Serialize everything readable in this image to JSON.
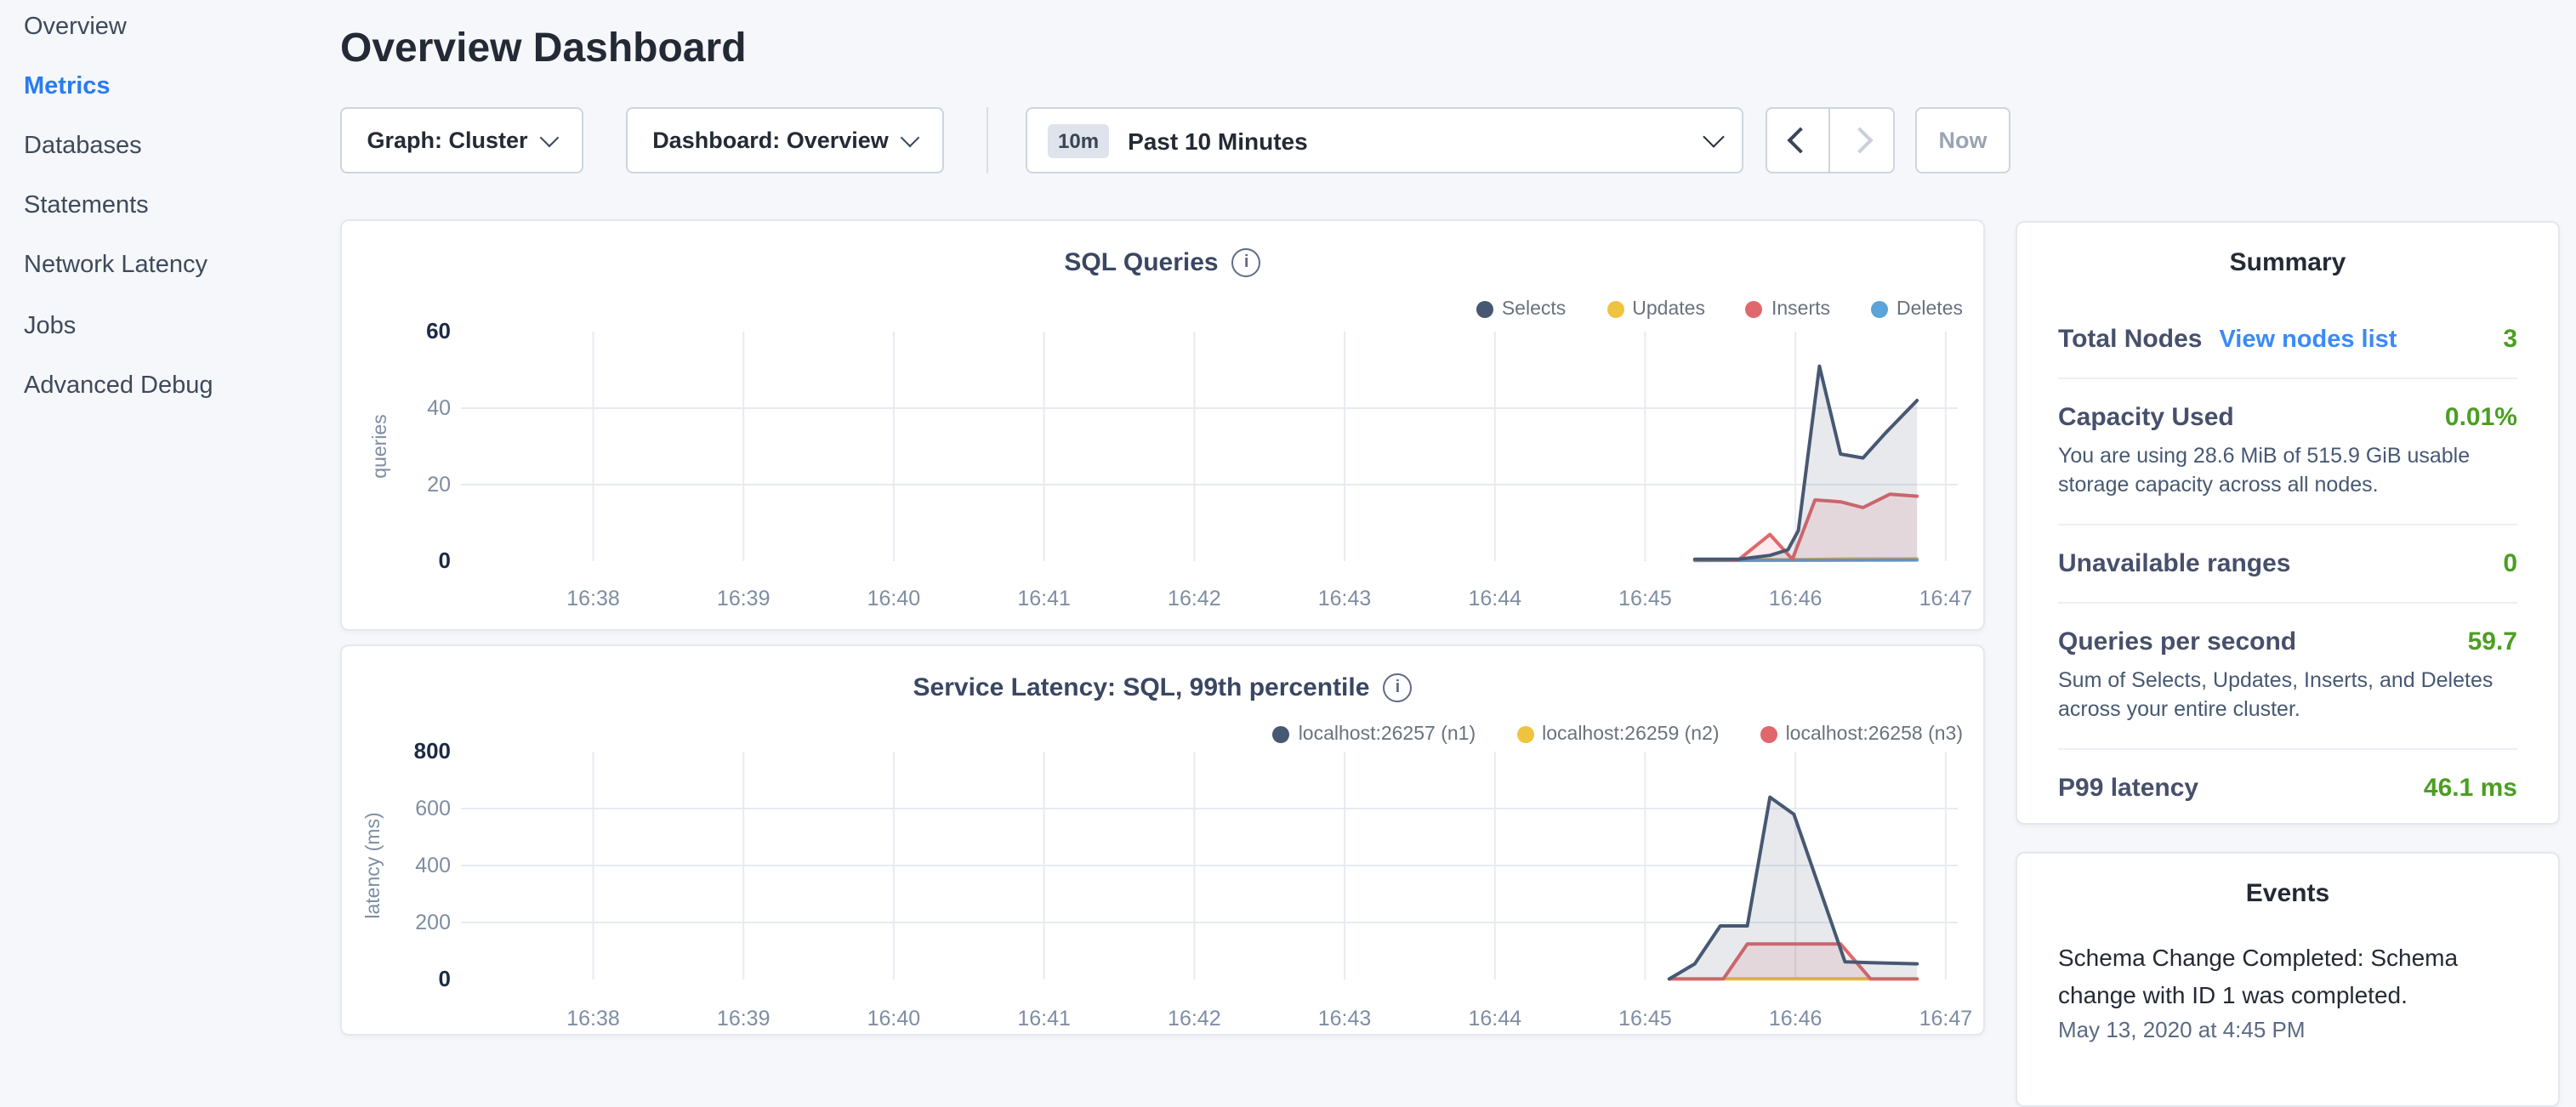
{
  "sidebar": {
    "items": [
      {
        "label": "Overview",
        "active": false
      },
      {
        "label": "Metrics",
        "active": true
      },
      {
        "label": "Databases",
        "active": false
      },
      {
        "label": "Statements",
        "active": false
      },
      {
        "label": "Network Latency",
        "active": false
      },
      {
        "label": "Jobs",
        "active": false
      },
      {
        "label": "Advanced Debug",
        "active": false
      }
    ]
  },
  "header": {
    "title": "Overview Dashboard"
  },
  "controls": {
    "graph_dropdown": "Graph: Cluster",
    "dashboard_dropdown": "Dashboard: Overview",
    "time_window_badge": "10m",
    "time_window_label": "Past 10 Minutes",
    "now_button": "Now"
  },
  "colors": {
    "nav_active_blue": "#2a7bf0",
    "link_blue": "#3b8af8",
    "success_green": "#4c9e22"
  },
  "chart_style": {
    "grid": "#e7ebf1",
    "tick": "#7e8da3",
    "tick_strong": "#1c2a44",
    "fill_opacity": 0.13
  },
  "chart_data": [
    {
      "type": "area",
      "title": "SQL Queries",
      "ylabel": "queries",
      "xlabel": "",
      "x_ticks": [
        "16:38",
        "16:39",
        "16:40",
        "16:41",
        "16:42",
        "16:43",
        "16:44",
        "16:45",
        "16:46",
        "16:47"
      ],
      "x_domain_minutes": [
        37.12,
        47.08
      ],
      "ylim": [
        0,
        60
      ],
      "y_ticks": [
        0,
        20,
        40,
        60
      ],
      "grid": true,
      "legend_position": "top-right",
      "draw_order": [
        1,
        3,
        2,
        0
      ],
      "series": [
        {
          "name": "Selects",
          "color": "#475872",
          "points": [
            [
              45.33,
              0.5
            ],
            [
              45.62,
              0.5
            ],
            [
              45.83,
              1.5
            ],
            [
              45.95,
              3
            ],
            [
              46.02,
              8
            ],
            [
              46.16,
              51
            ],
            [
              46.3,
              28
            ],
            [
              46.45,
              27
            ],
            [
              46.6,
              33.5
            ],
            [
              46.81,
              42
            ]
          ]
        },
        {
          "name": "Updates",
          "color": "#eec33f",
          "points": [
            [
              45.33,
              0.4
            ],
            [
              46.0,
              0.4
            ],
            [
              46.4,
              0.6
            ],
            [
              46.81,
              0.6
            ]
          ]
        },
        {
          "name": "Inserts",
          "color": "#df686c",
          "points": [
            [
              45.33,
              0.3
            ],
            [
              45.62,
              0.3
            ],
            [
              45.83,
              7
            ],
            [
              45.98,
              0.5
            ],
            [
              46.13,
              16
            ],
            [
              46.3,
              15.5
            ],
            [
              46.45,
              14
            ],
            [
              46.63,
              17.5
            ],
            [
              46.81,
              17
            ]
          ]
        },
        {
          "name": "Deletes",
          "color": "#5ba3d9",
          "points": [
            [
              45.33,
              0.2
            ],
            [
              46.81,
              0.3
            ]
          ]
        }
      ]
    },
    {
      "type": "area",
      "title": "Service Latency: SQL, 99th percentile",
      "ylabel": "latency (ms)",
      "xlabel": "",
      "x_ticks": [
        "16:38",
        "16:39",
        "16:40",
        "16:41",
        "16:42",
        "16:43",
        "16:44",
        "16:45",
        "16:46",
        "16:47"
      ],
      "x_domain_minutes": [
        37.12,
        47.08
      ],
      "ylim": [
        0,
        800
      ],
      "y_ticks": [
        0,
        200,
        400,
        600,
        800
      ],
      "grid": true,
      "legend_position": "top-right",
      "draw_order": [
        1,
        2,
        0
      ],
      "series": [
        {
          "name": "localhost:26257 (n1)",
          "color": "#475872",
          "points": [
            [
              45.16,
              2
            ],
            [
              45.33,
              55
            ],
            [
              45.5,
              188
            ],
            [
              45.68,
              188
            ],
            [
              45.83,
              640
            ],
            [
              45.99,
              580
            ],
            [
              46.33,
              62
            ],
            [
              46.5,
              59
            ],
            [
              46.81,
              55
            ]
          ]
        },
        {
          "name": "localhost:26259 (n2)",
          "color": "#eec33f",
          "points": [
            [
              45.16,
              2
            ],
            [
              46.81,
              2
            ]
          ]
        },
        {
          "name": "localhost:26258 (n3)",
          "color": "#df686c",
          "points": [
            [
              45.16,
              2
            ],
            [
              45.52,
              2
            ],
            [
              45.68,
              125
            ],
            [
              46.3,
              125
            ],
            [
              46.5,
              2
            ],
            [
              46.81,
              2
            ]
          ]
        }
      ]
    }
  ],
  "summary": {
    "heading": "Summary",
    "total_nodes": {
      "label": "Total Nodes",
      "link": "View nodes list",
      "value": "3"
    },
    "capacity": {
      "label": "Capacity Used",
      "value": "0.01%",
      "description": "You are using 28.6 MiB of 515.9 GiB usable storage capacity across all nodes."
    },
    "unavailable": {
      "label": "Unavailable ranges",
      "value": "0"
    },
    "qps": {
      "label": "Queries per second",
      "value": "59.7",
      "description": "Sum of Selects, Updates, Inserts, and Deletes across your entire cluster."
    },
    "p99": {
      "label": "P99 latency",
      "value": "46.1 ms"
    }
  },
  "events": {
    "heading": "Events",
    "items": [
      {
        "message": "Schema Change Completed: Schema change with ID 1 was completed.",
        "timestamp": "May 13, 2020 at 4:45 PM"
      }
    ]
  }
}
